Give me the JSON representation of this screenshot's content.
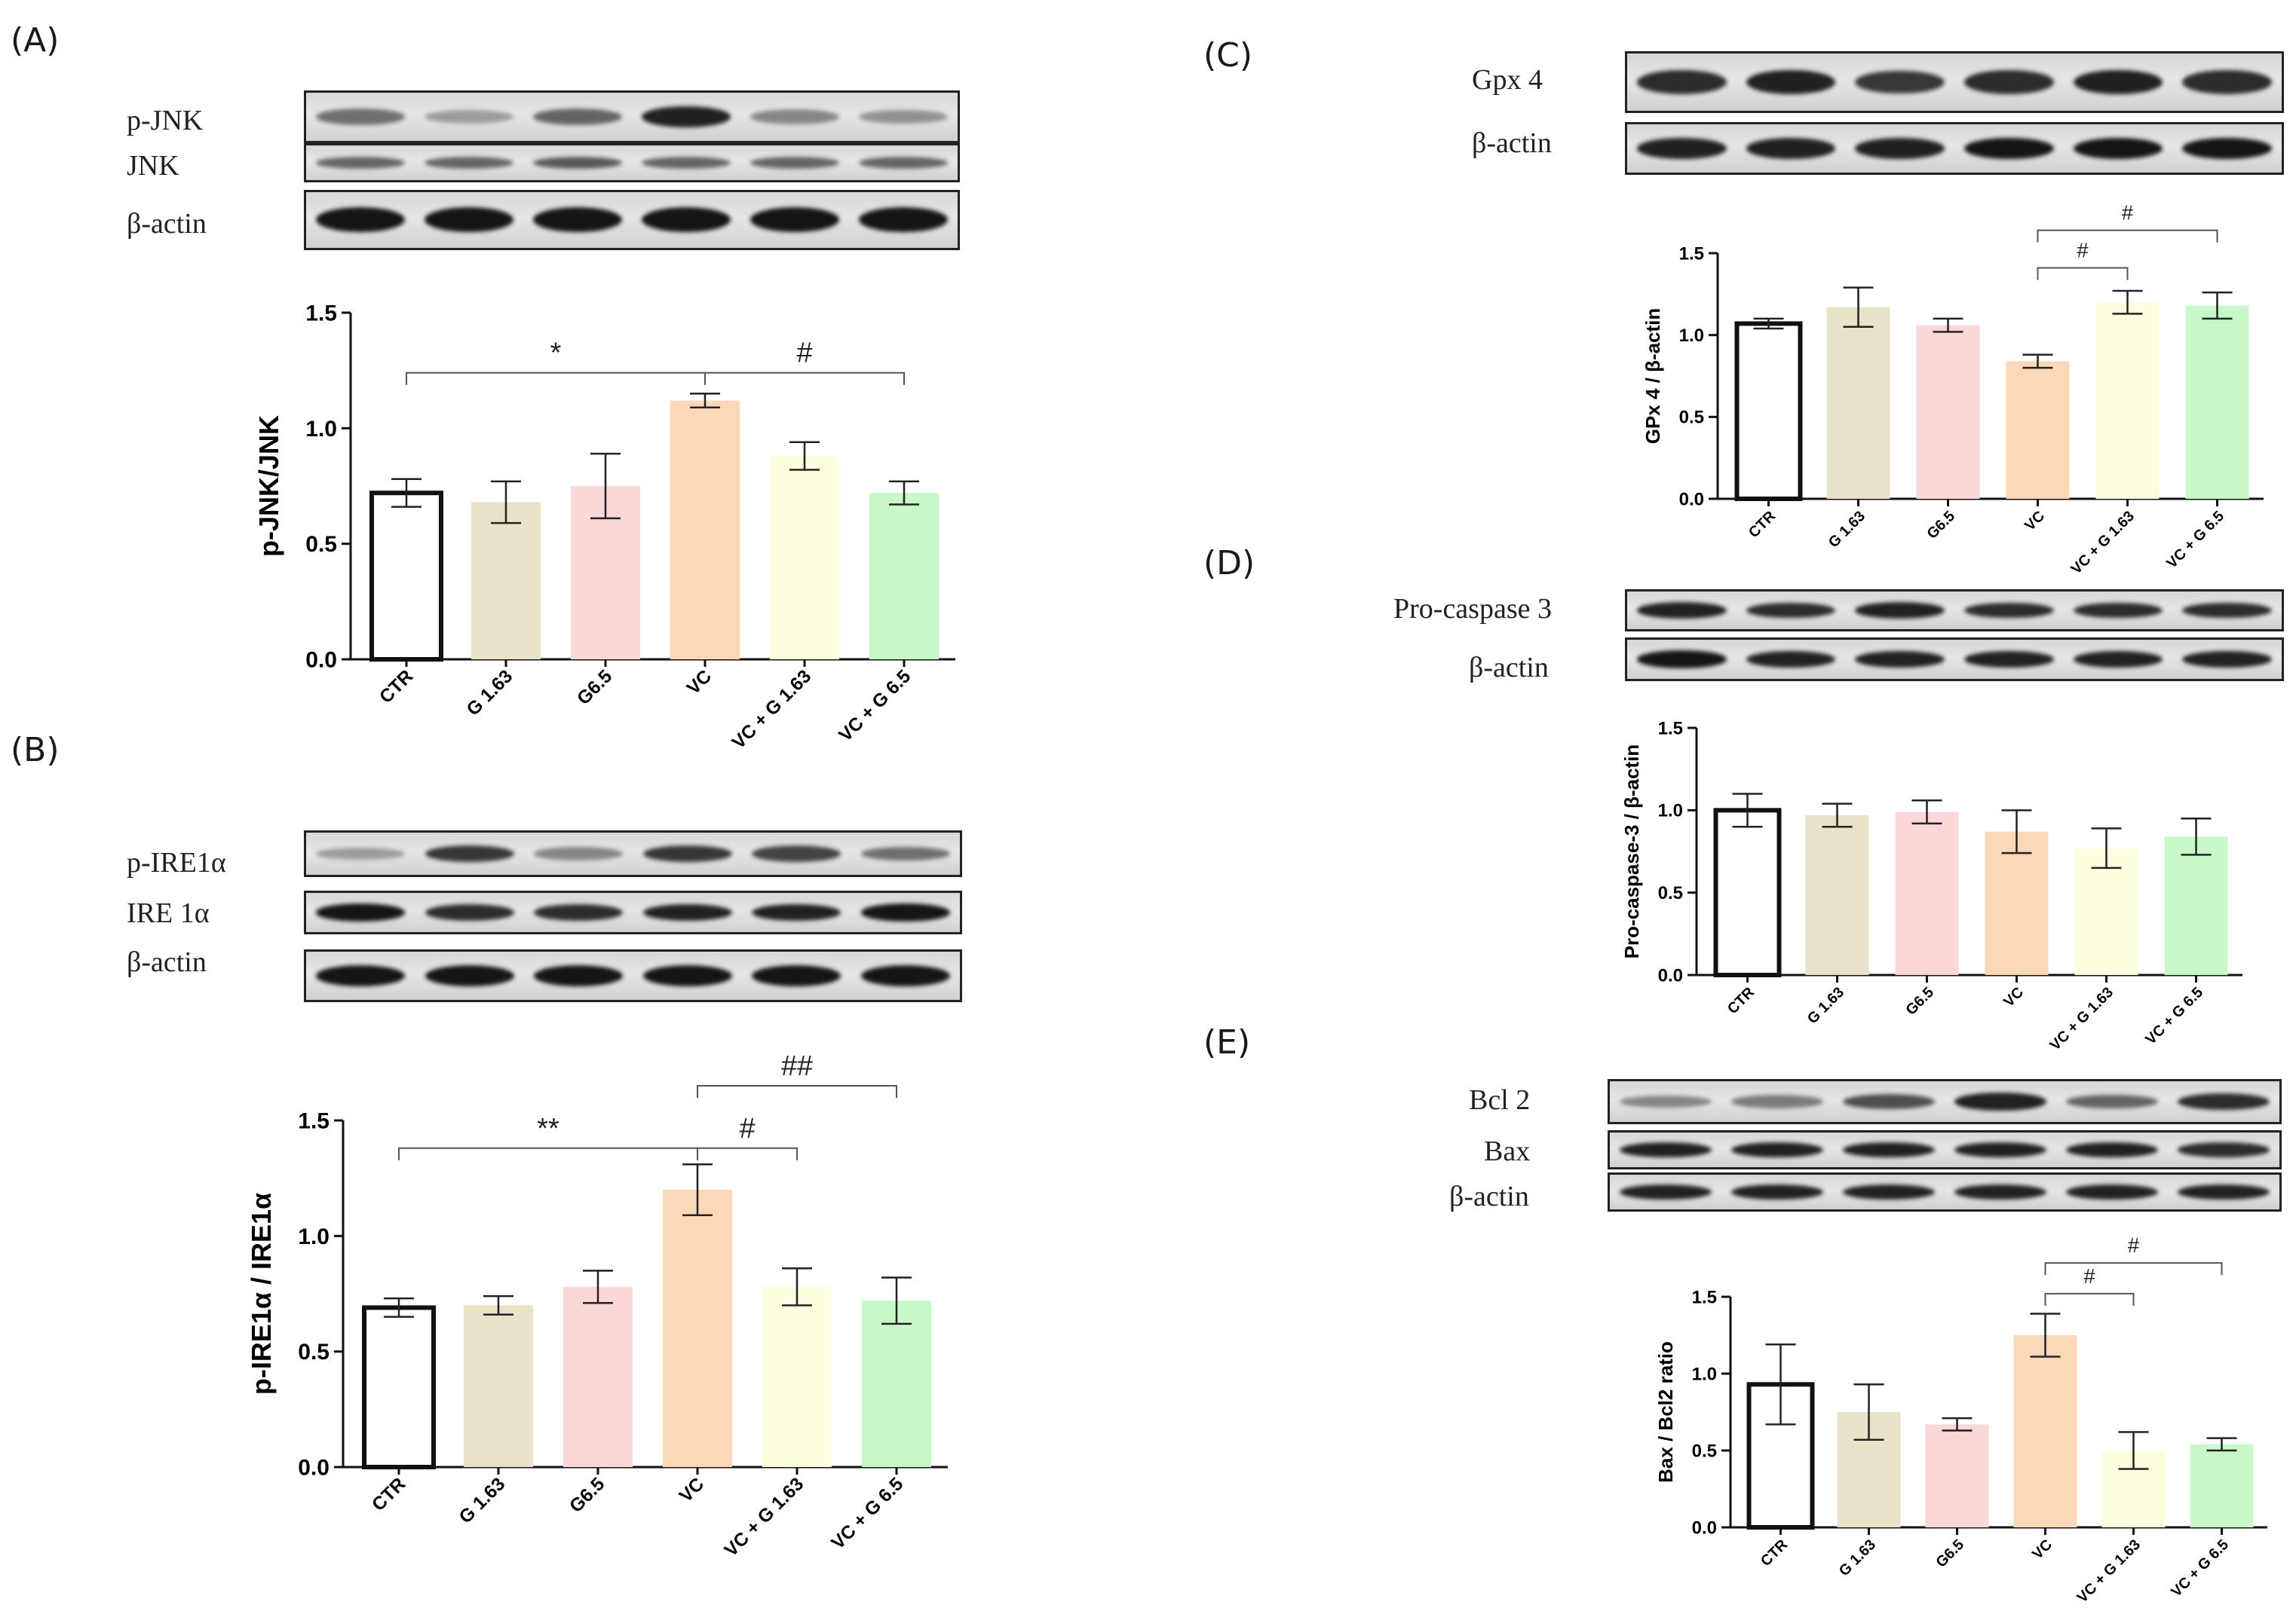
{
  "panels": [
    {
      "letter": "(A)"
    },
    {
      "letter": "(B)"
    },
    {
      "letter": "(C)"
    },
    {
      "letter": "(D)"
    },
    {
      "letter": "(E)"
    }
  ],
  "blots": {
    "A": [
      {
        "label": "p-JNK",
        "intensity": [
          0.55,
          0.35,
          0.6,
          0.9,
          0.45,
          0.4
        ]
      },
      {
        "label": "JNK",
        "intensity": [
          0.6,
          0.6,
          0.65,
          0.6,
          0.6,
          0.6
        ]
      },
      {
        "label": "β-actin",
        "intensity": [
          0.95,
          0.95,
          0.95,
          0.95,
          0.95,
          0.95
        ]
      }
    ],
    "B": [
      {
        "label": "p-IRE1α",
        "intensity": [
          0.35,
          0.8,
          0.45,
          0.8,
          0.75,
          0.55
        ]
      },
      {
        "label": "IRE 1α",
        "intensity": [
          0.95,
          0.85,
          0.85,
          0.9,
          0.9,
          0.95
        ]
      },
      {
        "label": "β-actin",
        "intensity": [
          0.95,
          0.95,
          0.95,
          0.95,
          0.95,
          0.95
        ]
      }
    ],
    "C": [
      {
        "label": "Gpx 4",
        "intensity": [
          0.85,
          0.9,
          0.8,
          0.85,
          0.9,
          0.85
        ]
      },
      {
        "label": "β-actin",
        "intensity": [
          0.9,
          0.9,
          0.9,
          0.95,
          0.95,
          0.95
        ]
      }
    ],
    "D": [
      {
        "label": "Pro-caspase 3",
        "intensity": [
          0.9,
          0.85,
          0.9,
          0.85,
          0.85,
          0.85
        ]
      },
      {
        "label": "β-actin",
        "intensity": [
          0.95,
          0.9,
          0.9,
          0.9,
          0.9,
          0.9
        ]
      }
    ],
    "E": [
      {
        "label": "Bcl 2",
        "intensity": [
          0.45,
          0.5,
          0.7,
          0.9,
          0.6,
          0.85
        ]
      },
      {
        "label": "Bax",
        "intensity": [
          0.9,
          0.9,
          0.9,
          0.9,
          0.9,
          0.85
        ]
      },
      {
        "label": "β-actin",
        "intensity": [
          0.9,
          0.9,
          0.9,
          0.9,
          0.9,
          0.9
        ]
      }
    ]
  },
  "colors": {
    "bars": [
      "#ffffff",
      "#e8e2c8",
      "#fbd8d8",
      "#fcd8b8",
      "#fdfde0",
      "#c8f8c8"
    ],
    "bar_edge": "#111111"
  },
  "chart_data": [
    {
      "type": "bar",
      "panel": "A",
      "categories": [
        "CTR",
        "G 1.63",
        "G6.5",
        "VC",
        "VC + G 1.63",
        "VC + G 6.5"
      ],
      "values": [
        0.72,
        0.68,
        0.75,
        1.12,
        0.88,
        0.72
      ],
      "errors": [
        0.06,
        0.09,
        0.14,
        0.03,
        0.06,
        0.05
      ],
      "ylabel": "p-JNK/JNK",
      "ylim": [
        0,
        1.5
      ],
      "yticks": [
        "0.0",
        "0.5",
        "1.0",
        "1.5"
      ],
      "annotations": [
        {
          "from": 0,
          "to": 3,
          "level": 1.24,
          "label": "*"
        },
        {
          "from": 3,
          "to": 5,
          "level": 1.24,
          "label": "#"
        }
      ]
    },
    {
      "type": "bar",
      "panel": "B",
      "categories": [
        "CTR",
        "G 1.63",
        "G6.5",
        "VC",
        "VC + G 1.63",
        "VC + G 6.5"
      ],
      "values": [
        0.69,
        0.7,
        0.78,
        1.2,
        0.78,
        0.72
      ],
      "errors": [
        0.04,
        0.04,
        0.07,
        0.11,
        0.08,
        0.1
      ],
      "ylabel": "p-IRE1α / IRE1α",
      "ylim": [
        0,
        1.5
      ],
      "yticks": [
        "0.0",
        "0.5",
        "1.0",
        "1.5"
      ],
      "annotations": [
        {
          "from": 0,
          "to": 3,
          "level": 1.38,
          "label": "**"
        },
        {
          "from": 3,
          "to": 4,
          "level": 1.38,
          "label": "#"
        },
        {
          "from": 3,
          "to": 5,
          "level": 1.65,
          "label": "##"
        }
      ]
    },
    {
      "type": "bar",
      "panel": "C",
      "categories": [
        "CTR",
        "G 1.63",
        "G6.5",
        "VC",
        "VC + G 1.63",
        "VC + G 6.5"
      ],
      "values": [
        1.07,
        1.17,
        1.06,
        0.84,
        1.2,
        1.18
      ],
      "errors": [
        0.03,
        0.12,
        0.04,
        0.04,
        0.07,
        0.08
      ],
      "ylabel": "GPx 4 / β-actin",
      "ylim": [
        0,
        1.5
      ],
      "yticks": [
        "0.0",
        "0.5",
        "1.0",
        "1.5"
      ],
      "annotations": [
        {
          "from": 3,
          "to": 4,
          "level": 1.41,
          "label": "#"
        },
        {
          "from": 3,
          "to": 5,
          "level": 1.64,
          "label": "#"
        }
      ]
    },
    {
      "type": "bar",
      "panel": "D",
      "categories": [
        "CTR",
        "G 1.63",
        "G6.5",
        "VC",
        "VC + G 1.63",
        "VC + G 6.5"
      ],
      "values": [
        1.0,
        0.97,
        0.99,
        0.87,
        0.77,
        0.84
      ],
      "errors": [
        0.1,
        0.07,
        0.07,
        0.13,
        0.12,
        0.11
      ],
      "ylabel": "Pro-caspase-3 / β-actin",
      "ylim": [
        0,
        1.5
      ],
      "yticks": [
        "0.0",
        "0.5",
        "1.0",
        "1.5"
      ],
      "annotations": []
    },
    {
      "type": "bar",
      "panel": "E",
      "categories": [
        "CTR",
        "G 1.63",
        "G6.5",
        "VC",
        "VC + G 1.63",
        "VC + G 6.5"
      ],
      "values": [
        0.93,
        0.75,
        0.67,
        1.25,
        0.5,
        0.54
      ],
      "errors": [
        0.26,
        0.18,
        0.04,
        0.14,
        0.12,
        0.04
      ],
      "ylabel": "Bax / Bcl2 ratio",
      "ylim": [
        0,
        1.5
      ],
      "yticks": [
        "0.0",
        "0.5",
        "1.0",
        "1.5"
      ],
      "annotations": [
        {
          "from": 3,
          "to": 4,
          "level": 1.52,
          "label": "#"
        },
        {
          "from": 3,
          "to": 5,
          "level": 1.72,
          "label": "#"
        }
      ]
    }
  ]
}
